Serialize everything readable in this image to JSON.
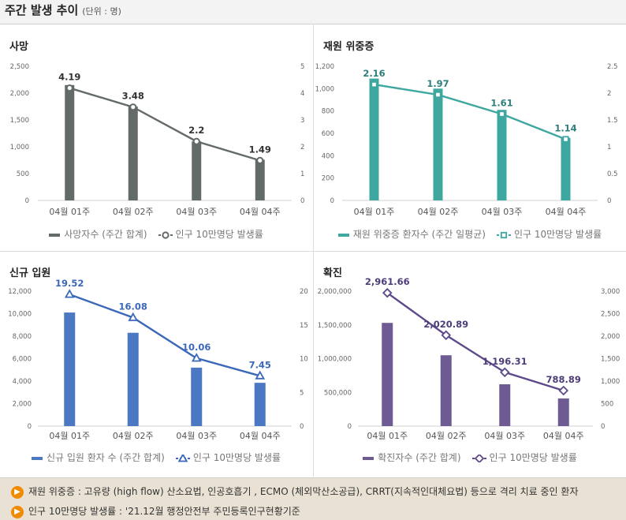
{
  "header": {
    "title": "주간 발생 추이",
    "unit": "(단위 : 명)"
  },
  "chart_data": [
    {
      "type": "bar",
      "title": "사망",
      "categories": [
        "04월 01주",
        "04월 02주",
        "04월 03주",
        "04월 04주"
      ],
      "series": [
        {
          "name": "사망자수 (주간 합계)",
          "type": "bar",
          "axis": "left",
          "values": [
            2150,
            1750,
            1100,
            760
          ],
          "color": "#636b69"
        },
        {
          "name": "인구 10만명당 발생률",
          "type": "line",
          "axis": "right",
          "values": [
            4.19,
            3.48,
            2.2,
            1.49
          ],
          "labels": [
            "4.19",
            "3.48",
            "2.2",
            "1.49"
          ],
          "color": "#636b69",
          "marker": "circle"
        }
      ],
      "left_ticks": [
        "0",
        "500",
        "1,000",
        "1,500",
        "2,000",
        "2,500"
      ],
      "right_ticks": [
        "0",
        "1",
        "2",
        "3",
        "4",
        "5"
      ],
      "ylim_left": [
        0,
        2500
      ],
      "ylim_right": [
        0,
        5
      ],
      "label_color": "#333333"
    },
    {
      "type": "bar",
      "title": "재원 위중증",
      "categories": [
        "04월 01주",
        "04월 02주",
        "04월 03주",
        "04월 04주"
      ],
      "series": [
        {
          "name": "재원 위중증 환자수 (주간 일평균)",
          "type": "bar",
          "axis": "left",
          "values": [
            1090,
            1000,
            810,
            560
          ],
          "color": "#3ea7a0"
        },
        {
          "name": "인구 10만명당 발생률",
          "type": "line",
          "axis": "right",
          "values": [
            2.16,
            1.97,
            1.61,
            1.14
          ],
          "labels": [
            "2.16",
            "1.97",
            "1.61",
            "1.14"
          ],
          "color": "#3ea7a0",
          "marker": "square"
        }
      ],
      "left_ticks": [
        "0",
        "200",
        "400",
        "600",
        "800",
        "1,000",
        "1,200"
      ],
      "right_ticks": [
        "0",
        "0.5",
        "1",
        "1.5",
        "2",
        "2.5"
      ],
      "ylim_left": [
        0,
        1200
      ],
      "ylim_right": [
        0,
        2.5
      ],
      "label_color": "#2e7e7c"
    },
    {
      "type": "bar",
      "title": "신규 입원",
      "categories": [
        "04월 01주",
        "04월 02주",
        "04월 03주",
        "04월 04주"
      ],
      "series": [
        {
          "name": "신규 입원 환자 수 (주간 합계)",
          "type": "bar",
          "axis": "left",
          "values": [
            10100,
            8300,
            5200,
            3850
          ],
          "color": "#4a78c2"
        },
        {
          "name": "인구 10만명당 발생률",
          "type": "line",
          "axis": "right",
          "values": [
            19.52,
            16.08,
            10.06,
            7.45
          ],
          "labels": [
            "19.52",
            "16.08",
            "10.06",
            "7.45"
          ],
          "color": "#3b68b8",
          "marker": "triangle"
        }
      ],
      "left_ticks": [
        "0",
        "2,000",
        "4,000",
        "6,000",
        "8,000",
        "10,000",
        "12,000"
      ],
      "right_ticks": [
        "0",
        "5",
        "10",
        "15",
        "20"
      ],
      "ylim_left": [
        0,
        12000
      ],
      "ylim_right": [
        0,
        20
      ],
      "label_color": "#3b68b8"
    },
    {
      "type": "bar",
      "title": "확진",
      "categories": [
        "04월 01주",
        "04월 02주",
        "04월 03주",
        "04월 04주"
      ],
      "series": [
        {
          "name": "확진자수 (주간 합계)",
          "type": "bar",
          "axis": "left",
          "values": [
            1530000,
            1050000,
            620000,
            410000
          ],
          "color": "#6f5b93"
        },
        {
          "name": "인구 10만명당 발생률",
          "type": "line",
          "axis": "right",
          "values": [
            2961.66,
            2020.89,
            1196.31,
            788.89
          ],
          "labels": [
            "2,961.66",
            "2,020.89",
            "1,196.31",
            "788.89"
          ],
          "color": "#5e4a8a",
          "marker": "diamond"
        }
      ],
      "left_ticks": [
        "0",
        "500,000",
        "1,000,000",
        "1,500,000",
        "2,000,000"
      ],
      "right_ticks": [
        "0",
        "500",
        "1,000",
        "1,500",
        "2,000",
        "2,500",
        "3,000"
      ],
      "ylim_left": [
        0,
        2000000
      ],
      "ylim_right": [
        0,
        3000
      ],
      "label_color": "#4d3d7a"
    }
  ],
  "notes": [
    {
      "icon": "speaker-icon",
      "text": "재원 위중증 : 고유량 (high flow) 산소요법, 인공호흡기 , ECMO (체외막산소공급), CRRT(지속적인대체요법) 등으로 격리 치료 중인 환자"
    },
    {
      "icon": "speaker-icon",
      "text": "인구 10만명당 발생률 : '21.12월 행정안전부 주민등록인구현황기준"
    }
  ],
  "colors": {
    "accent": "#f08a00",
    "notes_bg": "#e9e2d4"
  }
}
